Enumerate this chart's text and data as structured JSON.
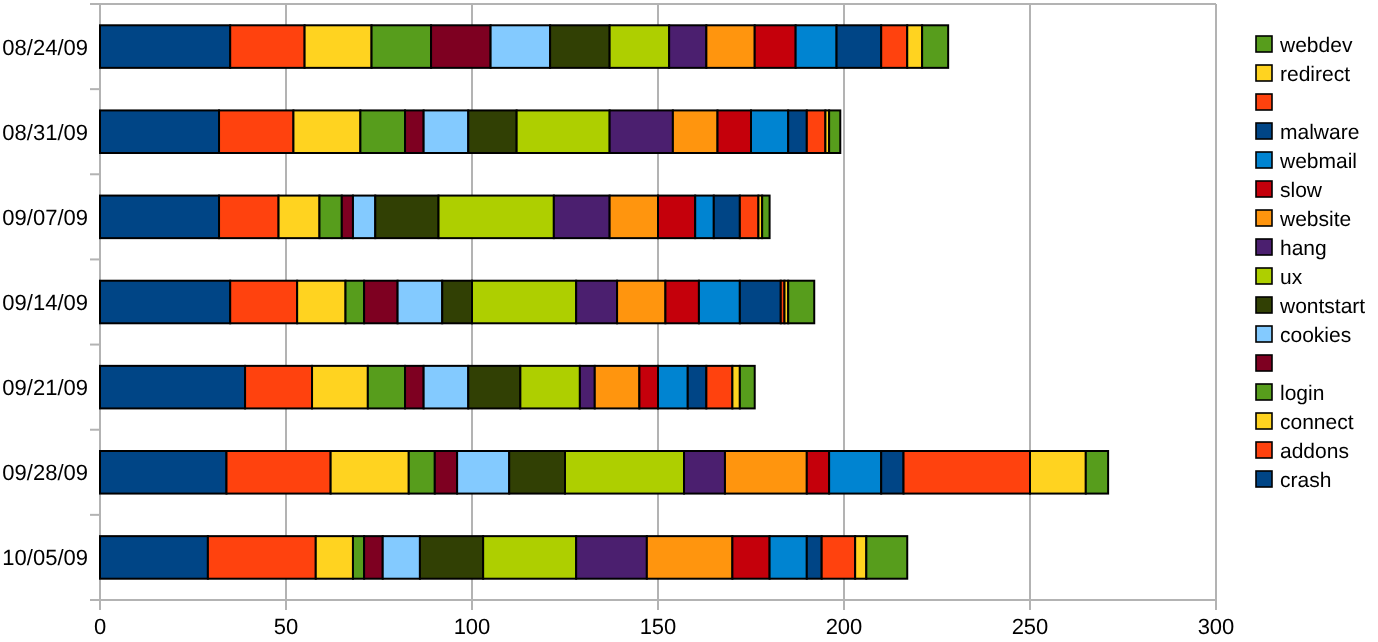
{
  "chart_data": {
    "type": "bar",
    "orientation": "horizontal",
    "stacked": true,
    "grid": "x",
    "legend": "right",
    "categories": [
      "08/24/09",
      "08/31/09",
      "09/07/09",
      "09/14/09",
      "09/21/09",
      "09/28/09",
      "10/05/09"
    ],
    "xlim": [
      0,
      300
    ],
    "xticks": [
      0,
      50,
      100,
      150,
      200,
      250,
      300
    ],
    "series": [
      {
        "name": "crash",
        "color": "#004586",
        "values": [
          35,
          32,
          32,
          35,
          39,
          34,
          29
        ]
      },
      {
        "name": "addons",
        "color": "#ff420e",
        "values": [
          20,
          20,
          16,
          18,
          18,
          28,
          29
        ]
      },
      {
        "name": "connect",
        "color": "#ffd320",
        "values": [
          18,
          18,
          11,
          13,
          15,
          21,
          10
        ]
      },
      {
        "name": "login",
        "color": "#579d1c",
        "values": [
          16,
          12,
          6,
          5,
          10,
          7,
          3
        ]
      },
      {
        "color": "#7e0021",
        "values": [
          16,
          5,
          3,
          9,
          5,
          6,
          5
        ]
      },
      {
        "name": "cookies",
        "color": "#83caff",
        "values": [
          16,
          12,
          6,
          12,
          12,
          14,
          10
        ]
      },
      {
        "name": "wontstart",
        "color": "#314004",
        "values": [
          16,
          13,
          17,
          8,
          14,
          15,
          17
        ]
      },
      {
        "name": "ux",
        "color": "#aecf00",
        "values": [
          16,
          25,
          31,
          28,
          16,
          32,
          25
        ]
      },
      {
        "name": "hang",
        "color": "#4b1f6f",
        "values": [
          10,
          17,
          15,
          11,
          4,
          11,
          19
        ]
      },
      {
        "name": "website",
        "color": "#ff950e",
        "values": [
          13,
          12,
          13,
          13,
          12,
          22,
          23
        ]
      },
      {
        "name": "slow",
        "color": "#c5000b",
        "values": [
          11,
          9,
          10,
          9,
          5,
          6,
          10
        ]
      },
      {
        "name": "webmail",
        "color": "#0084d1",
        "values": [
          11,
          10,
          5,
          11,
          8,
          14,
          10
        ]
      },
      {
        "name": "malware",
        "color": "#004586",
        "values": [
          12,
          5,
          7,
          11,
          5,
          6,
          4
        ]
      },
      {
        "color": "#ff420e",
        "values": [
          7,
          5,
          5,
          1,
          7,
          34,
          9
        ]
      },
      {
        "name": "redirect",
        "color": "#ffd320",
        "values": [
          4,
          1,
          1,
          1,
          2,
          15,
          3
        ]
      },
      {
        "name": "webdev",
        "color": "#579d1c",
        "values": [
          7,
          3,
          2,
          7,
          4,
          6,
          11
        ]
      }
    ]
  }
}
